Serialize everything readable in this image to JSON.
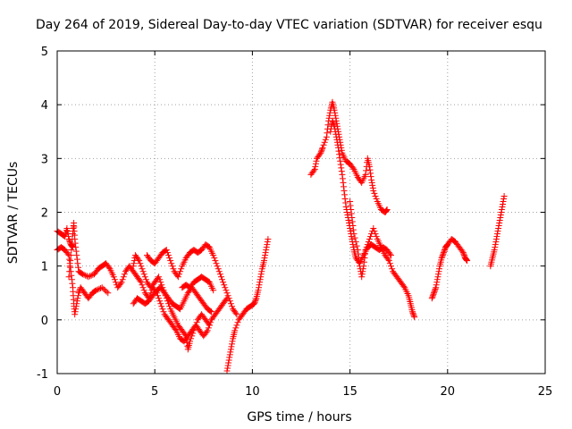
{
  "chart_data": {
    "type": "scatter",
    "title": "Day 264 of 2019, Sidereal Day-to-day VTEC variation (SDTVAR) for receiver esqu",
    "xlabel": "GPS time / hours",
    "ylabel": "SDTVAR / TECUs",
    "xlim": [
      0,
      25
    ],
    "ylim": [
      -1,
      5
    ],
    "x_ticks": [
      "0",
      "5",
      "10",
      "15",
      "20",
      "25"
    ],
    "y_ticks": [
      "-1",
      "0",
      "1",
      "2",
      "3",
      "4",
      "5"
    ],
    "grid": true,
    "marker": "+",
    "color": "#ff0000",
    "series": [
      {
        "name": "s1",
        "points": [
          [
            0.0,
            1.65
          ],
          [
            0.2,
            1.6
          ],
          [
            0.4,
            1.55
          ],
          [
            0.5,
            1.7
          ],
          [
            0.6,
            1.5
          ],
          [
            0.7,
            1.4
          ],
          [
            0.8,
            1.35
          ]
        ]
      },
      {
        "name": "s2",
        "points": [
          [
            0.0,
            1.3
          ],
          [
            0.2,
            1.35
          ],
          [
            0.4,
            1.3
          ],
          [
            0.6,
            1.2
          ],
          [
            0.7,
            0.9
          ],
          [
            0.8,
            0.6
          ],
          [
            0.85,
            0.3
          ],
          [
            0.9,
            0.1
          ],
          [
            1.0,
            0.3
          ],
          [
            1.1,
            0.5
          ],
          [
            1.2,
            0.6
          ],
          [
            1.4,
            0.5
          ],
          [
            1.6,
            0.4
          ],
          [
            1.8,
            0.5
          ],
          [
            2.0,
            0.55
          ],
          [
            2.3,
            0.6
          ],
          [
            2.6,
            0.5
          ]
        ]
      },
      {
        "name": "s3",
        "points": [
          [
            0.6,
            0.8
          ],
          [
            0.7,
            1.2
          ],
          [
            0.8,
            1.6
          ],
          [
            0.85,
            1.8
          ],
          [
            0.9,
            1.5
          ],
          [
            1.0,
            1.2
          ],
          [
            1.1,
            0.9
          ],
          [
            1.3,
            0.85
          ],
          [
            1.6,
            0.8
          ],
          [
            1.9,
            0.85
          ],
          [
            2.1,
            0.95
          ],
          [
            2.3,
            1.0
          ],
          [
            2.5,
            1.05
          ],
          [
            2.7,
            0.95
          ],
          [
            2.9,
            0.8
          ],
          [
            3.1,
            0.6
          ],
          [
            3.3,
            0.7
          ],
          [
            3.5,
            0.9
          ],
          [
            3.7,
            1.0
          ],
          [
            3.9,
            0.9
          ],
          [
            4.1,
            0.8
          ],
          [
            4.3,
            0.7
          ],
          [
            4.5,
            0.5
          ],
          [
            4.7,
            0.4
          ],
          [
            4.9,
            0.6
          ],
          [
            5.1,
            0.5
          ],
          [
            5.3,
            0.3
          ],
          [
            5.5,
            0.1
          ],
          [
            5.7,
            0.0
          ],
          [
            5.9,
            -0.1
          ],
          [
            6.1,
            -0.2
          ],
          [
            6.3,
            -0.35
          ],
          [
            6.5,
            -0.4
          ],
          [
            6.7,
            -0.3
          ],
          [
            6.9,
            -0.2
          ],
          [
            7.1,
            -0.1
          ],
          [
            7.3,
            -0.2
          ],
          [
            7.5,
            -0.3
          ],
          [
            7.7,
            -0.2
          ],
          [
            7.9,
            0.0
          ],
          [
            8.1,
            0.1
          ],
          [
            8.3,
            0.2
          ],
          [
            8.5,
            0.3
          ],
          [
            8.7,
            0.4
          ]
        ]
      },
      {
        "name": "s4",
        "points": [
          [
            3.9,
            0.3
          ],
          [
            4.1,
            0.4
          ],
          [
            4.3,
            0.35
          ],
          [
            4.5,
            0.3
          ],
          [
            4.7,
            0.35
          ],
          [
            4.9,
            0.45
          ],
          [
            5.1,
            0.55
          ],
          [
            5.3,
            0.6
          ],
          [
            5.5,
            0.5
          ],
          [
            5.7,
            0.4
          ],
          [
            5.9,
            0.3
          ],
          [
            6.1,
            0.25
          ],
          [
            6.3,
            0.2
          ],
          [
            6.5,
            0.35
          ],
          [
            6.7,
            0.5
          ],
          [
            6.9,
            0.6
          ],
          [
            7.1,
            0.5
          ],
          [
            7.3,
            0.4
          ],
          [
            7.5,
            0.3
          ],
          [
            7.7,
            0.2
          ],
          [
            7.9,
            0.15
          ]
        ]
      },
      {
        "name": "s5",
        "points": [
          [
            3.9,
            1.0
          ],
          [
            4.0,
            1.2
          ],
          [
            4.2,
            1.1
          ],
          [
            4.4,
            0.9
          ],
          [
            4.6,
            0.7
          ],
          [
            4.8,
            0.6
          ],
          [
            5.0,
            0.7
          ],
          [
            5.2,
            0.8
          ],
          [
            5.4,
            0.6
          ],
          [
            5.6,
            0.4
          ],
          [
            5.8,
            0.2
          ],
          [
            6.0,
            0.05
          ],
          [
            6.2,
            -0.1
          ],
          [
            6.4,
            -0.2
          ],
          [
            6.6,
            -0.3
          ],
          [
            6.7,
            -0.55
          ],
          [
            6.8,
            -0.4
          ],
          [
            7.0,
            -0.2
          ],
          [
            7.2,
            0.0
          ],
          [
            7.4,
            0.1
          ],
          [
            7.6,
            0.0
          ],
          [
            7.8,
            -0.1
          ]
        ]
      },
      {
        "name": "s6",
        "points": [
          [
            4.6,
            1.2
          ],
          [
            4.8,
            1.1
          ],
          [
            5.0,
            1.05
          ],
          [
            5.2,
            1.15
          ],
          [
            5.4,
            1.25
          ],
          [
            5.6,
            1.3
          ],
          [
            5.8,
            1.1
          ],
          [
            6.0,
            0.9
          ],
          [
            6.2,
            0.8
          ],
          [
            6.4,
            1.0
          ],
          [
            6.6,
            1.15
          ],
          [
            6.8,
            1.25
          ],
          [
            7.0,
            1.3
          ],
          [
            7.2,
            1.25
          ],
          [
            7.4,
            1.3
          ],
          [
            7.6,
            1.4
          ],
          [
            7.8,
            1.35
          ],
          [
            8.0,
            1.2
          ],
          [
            8.2,
            1.0
          ],
          [
            8.4,
            0.8
          ],
          [
            8.6,
            0.6
          ],
          [
            8.8,
            0.4
          ],
          [
            9.0,
            0.2
          ],
          [
            9.2,
            0.1
          ]
        ]
      },
      {
        "name": "s7",
        "points": [
          [
            6.4,
            0.6
          ],
          [
            6.6,
            0.65
          ],
          [
            6.8,
            0.6
          ],
          [
            7.0,
            0.7
          ],
          [
            7.2,
            0.75
          ],
          [
            7.4,
            0.8
          ],
          [
            7.6,
            0.75
          ],
          [
            7.8,
            0.7
          ],
          [
            8.0,
            0.55
          ]
        ]
      },
      {
        "name": "s8",
        "points": [
          [
            8.7,
            -0.95
          ],
          [
            8.8,
            -0.75
          ],
          [
            8.9,
            -0.55
          ],
          [
            9.0,
            -0.35
          ],
          [
            9.1,
            -0.2
          ],
          [
            9.3,
            0.0
          ],
          [
            9.5,
            0.1
          ],
          [
            9.7,
            0.2
          ],
          [
            9.9,
            0.25
          ],
          [
            10.1,
            0.3
          ],
          [
            10.2,
            0.4
          ],
          [
            10.3,
            0.55
          ],
          [
            10.4,
            0.75
          ],
          [
            10.5,
            0.95
          ],
          [
            10.6,
            1.1
          ],
          [
            10.7,
            1.3
          ],
          [
            10.8,
            1.5
          ]
        ]
      },
      {
        "name": "s9",
        "points": [
          [
            13.0,
            2.7
          ],
          [
            13.2,
            2.8
          ],
          [
            13.3,
            3.0
          ],
          [
            13.5,
            3.1
          ],
          [
            13.6,
            3.2
          ],
          [
            13.8,
            3.4
          ],
          [
            13.9,
            3.7
          ],
          [
            14.0,
            3.9
          ],
          [
            14.1,
            4.05
          ],
          [
            14.2,
            3.9
          ],
          [
            14.3,
            3.7
          ],
          [
            14.4,
            3.5
          ],
          [
            14.5,
            3.3
          ],
          [
            14.6,
            3.1
          ],
          [
            14.8,
            2.95
          ],
          [
            15.0,
            2.9
          ],
          [
            15.2,
            2.8
          ],
          [
            15.4,
            2.65
          ],
          [
            15.6,
            2.55
          ],
          [
            15.8,
            2.7
          ],
          [
            15.9,
            3.0
          ],
          [
            16.0,
            2.85
          ],
          [
            16.1,
            2.6
          ],
          [
            16.2,
            2.4
          ],
          [
            16.4,
            2.2
          ],
          [
            16.6,
            2.05
          ],
          [
            16.8,
            2.0
          ],
          [
            16.9,
            2.05
          ]
        ]
      },
      {
        "name": "s10",
        "points": [
          [
            14.0,
            3.5
          ],
          [
            14.1,
            3.7
          ],
          [
            14.2,
            3.6
          ],
          [
            14.3,
            3.4
          ],
          [
            14.4,
            3.2
          ],
          [
            14.5,
            2.95
          ],
          [
            14.6,
            2.7
          ],
          [
            14.7,
            2.4
          ],
          [
            14.8,
            2.1
          ],
          [
            14.9,
            1.9
          ],
          [
            15.0,
            1.7
          ],
          [
            15.1,
            1.5
          ],
          [
            15.2,
            1.3
          ],
          [
            15.3,
            1.15
          ],
          [
            15.5,
            1.05
          ],
          [
            15.7,
            1.2
          ],
          [
            15.9,
            1.35
          ],
          [
            16.1,
            1.4
          ],
          [
            16.3,
            1.35
          ],
          [
            16.5,
            1.3
          ],
          [
            16.7,
            1.35
          ],
          [
            16.9,
            1.3
          ],
          [
            17.1,
            1.2
          ]
        ]
      },
      {
        "name": "s11",
        "points": [
          [
            15.0,
            2.2
          ],
          [
            15.1,
            1.9
          ],
          [
            15.2,
            1.6
          ],
          [
            15.4,
            1.3
          ],
          [
            15.5,
            1.0
          ],
          [
            15.6,
            0.8
          ],
          [
            15.7,
            1.0
          ],
          [
            15.8,
            1.3
          ],
          [
            16.0,
            1.5
          ],
          [
            16.2,
            1.7
          ],
          [
            16.4,
            1.5
          ],
          [
            16.6,
            1.35
          ],
          [
            16.8,
            1.2
          ],
          [
            17.0,
            1.1
          ],
          [
            17.2,
            0.9
          ],
          [
            17.4,
            0.8
          ],
          [
            17.6,
            0.7
          ],
          [
            17.8,
            0.6
          ],
          [
            18.0,
            0.45
          ],
          [
            18.1,
            0.3
          ],
          [
            18.2,
            0.15
          ],
          [
            18.3,
            0.05
          ]
        ]
      },
      {
        "name": "s12",
        "points": [
          [
            19.2,
            0.4
          ],
          [
            19.3,
            0.5
          ],
          [
            19.4,
            0.6
          ],
          [
            19.5,
            0.8
          ],
          [
            19.6,
            1.0
          ],
          [
            19.7,
            1.15
          ],
          [
            19.8,
            1.25
          ],
          [
            19.9,
            1.35
          ],
          [
            20.0,
            1.4
          ],
          [
            20.2,
            1.5
          ],
          [
            20.4,
            1.45
          ],
          [
            20.6,
            1.35
          ],
          [
            20.8,
            1.25
          ],
          [
            20.9,
            1.15
          ],
          [
            21.0,
            1.1
          ]
        ]
      },
      {
        "name": "s13",
        "points": [
          [
            22.2,
            1.0
          ],
          [
            22.3,
            1.15
          ],
          [
            22.4,
            1.3
          ],
          [
            22.5,
            1.5
          ],
          [
            22.6,
            1.7
          ],
          [
            22.7,
            1.9
          ],
          [
            22.8,
            2.1
          ],
          [
            22.9,
            2.3
          ]
        ]
      }
    ]
  }
}
